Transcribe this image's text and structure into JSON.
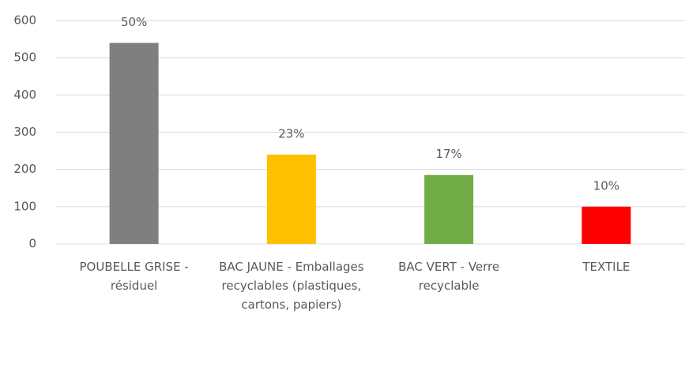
{
  "chart_data": {
    "type": "bar",
    "categories": [
      "POUBELLE GRISE - résiduel",
      "BAC JAUNE - Emballages recyclables (plastiques, cartons, papiers)",
      "BAC VERT - Verre recyclable",
      "TEXTILE"
    ],
    "values": [
      540,
      240,
      185,
      100
    ],
    "percentages": [
      "50%",
      "23%",
      "17%",
      "10%"
    ],
    "colors": [
      "#7f7f7f",
      "#ffc000",
      "#70ad47",
      "#ff0000"
    ],
    "ylim": [
      0,
      600
    ],
    "yticks": [
      0,
      100,
      200,
      300,
      400,
      500,
      600
    ],
    "grid": true
  }
}
